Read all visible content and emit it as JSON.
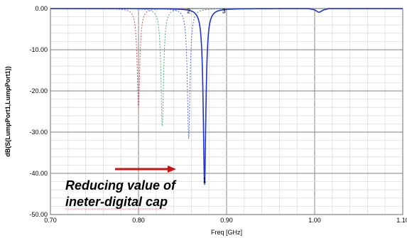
{
  "chart_data": {
    "type": "line",
    "title": "",
    "xlabel": "Freq [GHz]",
    "ylabel": "dB(S(LumpPort1,LumpPort1))",
    "xlim": [
      0.7,
      1.1
    ],
    "ylim": [
      -50,
      0
    ],
    "x_ticks": [
      "0.70",
      "0.80",
      "0.90",
      "1.00",
      "1.10"
    ],
    "y_ticks": [
      "0.00",
      "-10.00",
      "-20.00",
      "-30.00",
      "-40.00",
      "-50.00"
    ],
    "grid": true,
    "series": [
      {
        "style": "dotted",
        "color": "#cc5555",
        "resonance_ghz": 0.8,
        "min_db": -24.0,
        "width_ghz": 0.0018
      },
      {
        "style": "dotted",
        "color": "#4daa77",
        "resonance_ghz": 0.827,
        "min_db": -28.5,
        "width_ghz": 0.0018
      },
      {
        "style": "dotted",
        "color": "#5566cc",
        "resonance_ghz": 0.857,
        "min_db": -31.5,
        "width_ghz": 0.0018
      },
      {
        "style": "solid",
        "color": "#2233cc",
        "resonance_ghz": 0.875,
        "min_db": -42.5,
        "width_ghz": 0.0018
      }
    ],
    "markers": [
      {
        "label": "1",
        "x": 0.875,
        "y": -42.5
      },
      {
        "label": "2",
        "x": 0.857,
        "y": -1.5
      },
      {
        "label": "3",
        "x": 0.897,
        "y": -1.5
      }
    ],
    "annotations": {
      "line1": "Reducing value of",
      "line2": "ineter-digital cap",
      "arrow_color": "#cc1111"
    }
  }
}
